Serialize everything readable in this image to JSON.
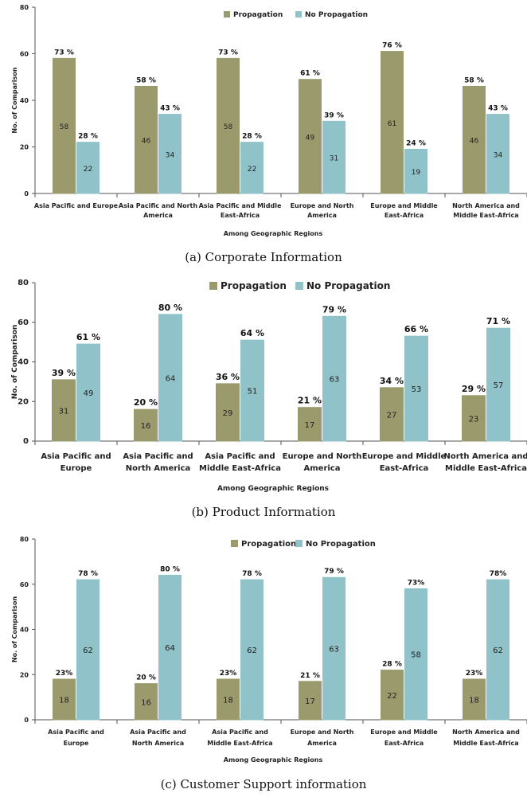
{
  "colors": {
    "propagation": "#9b9a6d",
    "no_propagation": "#8fc3c9",
    "axis": "#555555"
  },
  "captions": [
    "(a) Corporate Information",
    "(b) Product Information",
    "(c) Customer Support information"
  ],
  "chart_data": [
    {
      "type": "bar",
      "xlabel": "Among Geographic Regions",
      "ylabel": "No. of Comparison",
      "ylim": [
        0,
        80
      ],
      "yticks": [
        0,
        20,
        40,
        60,
        80
      ],
      "legend": "top-center",
      "grid": false,
      "categories": [
        [
          "Asia Pacific and Europe"
        ],
        [
          "Asia Pacific and North",
          "America"
        ],
        [
          "Asia Pacific and Middle",
          "East-Africa"
        ],
        [
          "Europe and North",
          "America"
        ],
        [
          "Europe and Middle",
          "East-Africa"
        ],
        [
          "North America and",
          "Middle East-Africa"
        ]
      ],
      "series": [
        {
          "name": "Propagation",
          "values": [
            58,
            46,
            58,
            49,
            61,
            46
          ],
          "percent_labels": [
            "73 %",
            "58 %",
            "73 %",
            "61 %",
            "76 %",
            "58 %"
          ]
        },
        {
          "name": "No Propagation",
          "values": [
            22,
            34,
            22,
            31,
            19,
            34
          ],
          "percent_labels": [
            "28 %",
            "43 %",
            "28 %",
            "39 %",
            "24 %",
            "43 %"
          ]
        }
      ]
    },
    {
      "type": "bar",
      "xlabel": "Among Geographic Regions",
      "ylabel": "No. of Comparison",
      "ylim": [
        0,
        80
      ],
      "yticks": [
        0,
        20,
        40,
        60,
        80
      ],
      "legend": "top-center",
      "grid": false,
      "categories": [
        [
          "Asia Pacific and",
          "Europe"
        ],
        [
          "Asia Pacific and",
          "North America"
        ],
        [
          "Asia Pacific and",
          "Middle East-Africa"
        ],
        [
          "Europe and North",
          "America"
        ],
        [
          "Europe and Middle",
          "East-Africa"
        ],
        [
          "North America and",
          "Middle East-Africa"
        ]
      ],
      "series": [
        {
          "name": "Propagation",
          "values": [
            31,
            16,
            29,
            17,
            27,
            23
          ],
          "percent_labels": [
            "39 %",
            "20 %",
            "36 %",
            "21 %",
            "34 %",
            "29 %"
          ]
        },
        {
          "name": "No Propagation",
          "values": [
            49,
            64,
            51,
            63,
            53,
            57
          ],
          "percent_labels": [
            "61 %",
            "80 %",
            "64 %",
            "79 %",
            "66 %",
            "71 %"
          ]
        }
      ]
    },
    {
      "type": "bar",
      "xlabel": "Among Geographic Regions",
      "ylabel": "No. of Comparison",
      "ylim": [
        0,
        80
      ],
      "yticks": [
        0,
        20,
        40,
        60,
        80
      ],
      "legend": "top-center",
      "grid": false,
      "categories": [
        [
          "Asia Pacific and",
          "Europe"
        ],
        [
          "Asia Pacific and",
          "North America"
        ],
        [
          "Asia Pacific and",
          "Middle East-Africa"
        ],
        [
          "Europe and North",
          "America"
        ],
        [
          "Europe and Middle",
          "East-Africa"
        ],
        [
          "North America and",
          "Middle East-Africa"
        ]
      ],
      "series": [
        {
          "name": "Propagation",
          "values": [
            18,
            16,
            18,
            17,
            22,
            18
          ],
          "percent_labels": [
            "23%",
            "20 %",
            "23%",
            "21 %",
            "28 %",
            "23%"
          ]
        },
        {
          "name": "No Propagation",
          "values": [
            62,
            64,
            62,
            63,
            58,
            62
          ],
          "percent_labels": [
            "78 %",
            "80 %",
            "78 %",
            "79 %",
            "73%",
            "78%"
          ]
        }
      ]
    }
  ]
}
